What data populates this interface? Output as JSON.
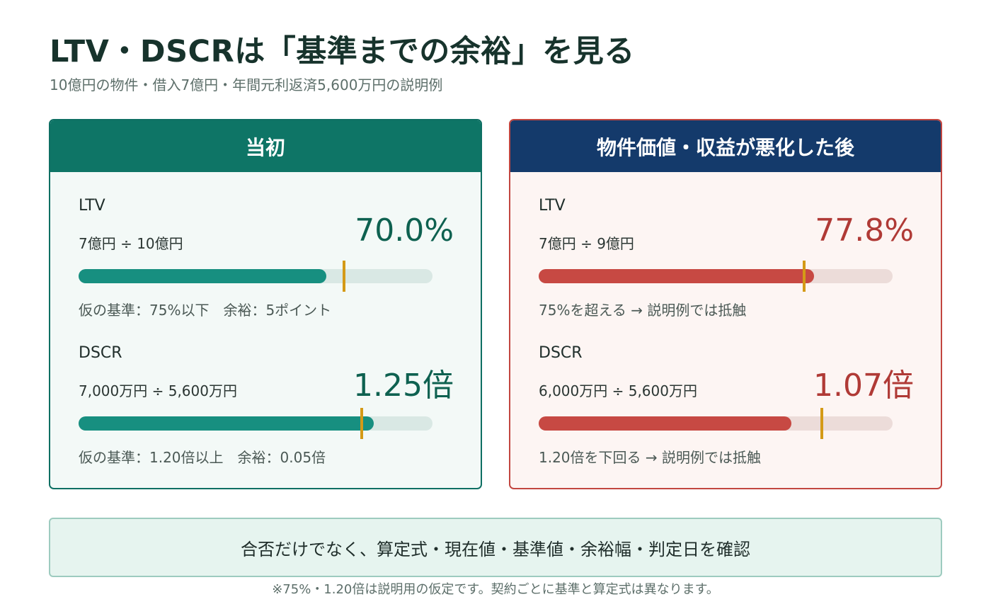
{
  "title": "LTV・DSCRは「基準までの余裕」を見る",
  "subtitle": "10億円の物件・借入7億円・年間元利返済5,600万円の説明例",
  "colors": {
    "initial_accent": "#0e7566",
    "after_accent": "#c24640",
    "after_header": "#143a6b",
    "threshold_marker": "#d49a17"
  },
  "panels": [
    {
      "header": "当初",
      "metrics": [
        {
          "name": "LTV",
          "formula": "7億円 ÷ 10億円",
          "value": "70.0%",
          "bar_fill_fraction": 0.7,
          "threshold_fraction": 0.75,
          "note": "仮の基準：75%以下　余裕：5ポイント"
        },
        {
          "name": "DSCR",
          "formula": "7,000万円 ÷ 5,600万円",
          "value": "1.25倍",
          "bar_fill_fraction": 0.833,
          "threshold_fraction": 0.8,
          "note": "仮の基準：1.20倍以上　余裕：0.05倍"
        }
      ]
    },
    {
      "header": "物件価値・収益が悪化した後",
      "metrics": [
        {
          "name": "LTV",
          "formula": "7億円 ÷ 9億円",
          "value": "77.8%",
          "bar_fill_fraction": 0.778,
          "threshold_fraction": 0.75,
          "note": "75%を超える → 説明例では抵触"
        },
        {
          "name": "DSCR",
          "formula": "6,000万円 ÷ 5,600万円",
          "value": "1.07倍",
          "bar_fill_fraction": 0.713,
          "threshold_fraction": 0.8,
          "note": "1.20倍を下回る → 説明例では抵触"
        }
      ]
    }
  ],
  "summary": "合否だけでなく、算定式・現在値・基準値・余裕幅・判定日を確認",
  "footnote": "※75%・1.20倍は説明用の仮定です。契約ごとに基準と算定式は異なります。"
}
